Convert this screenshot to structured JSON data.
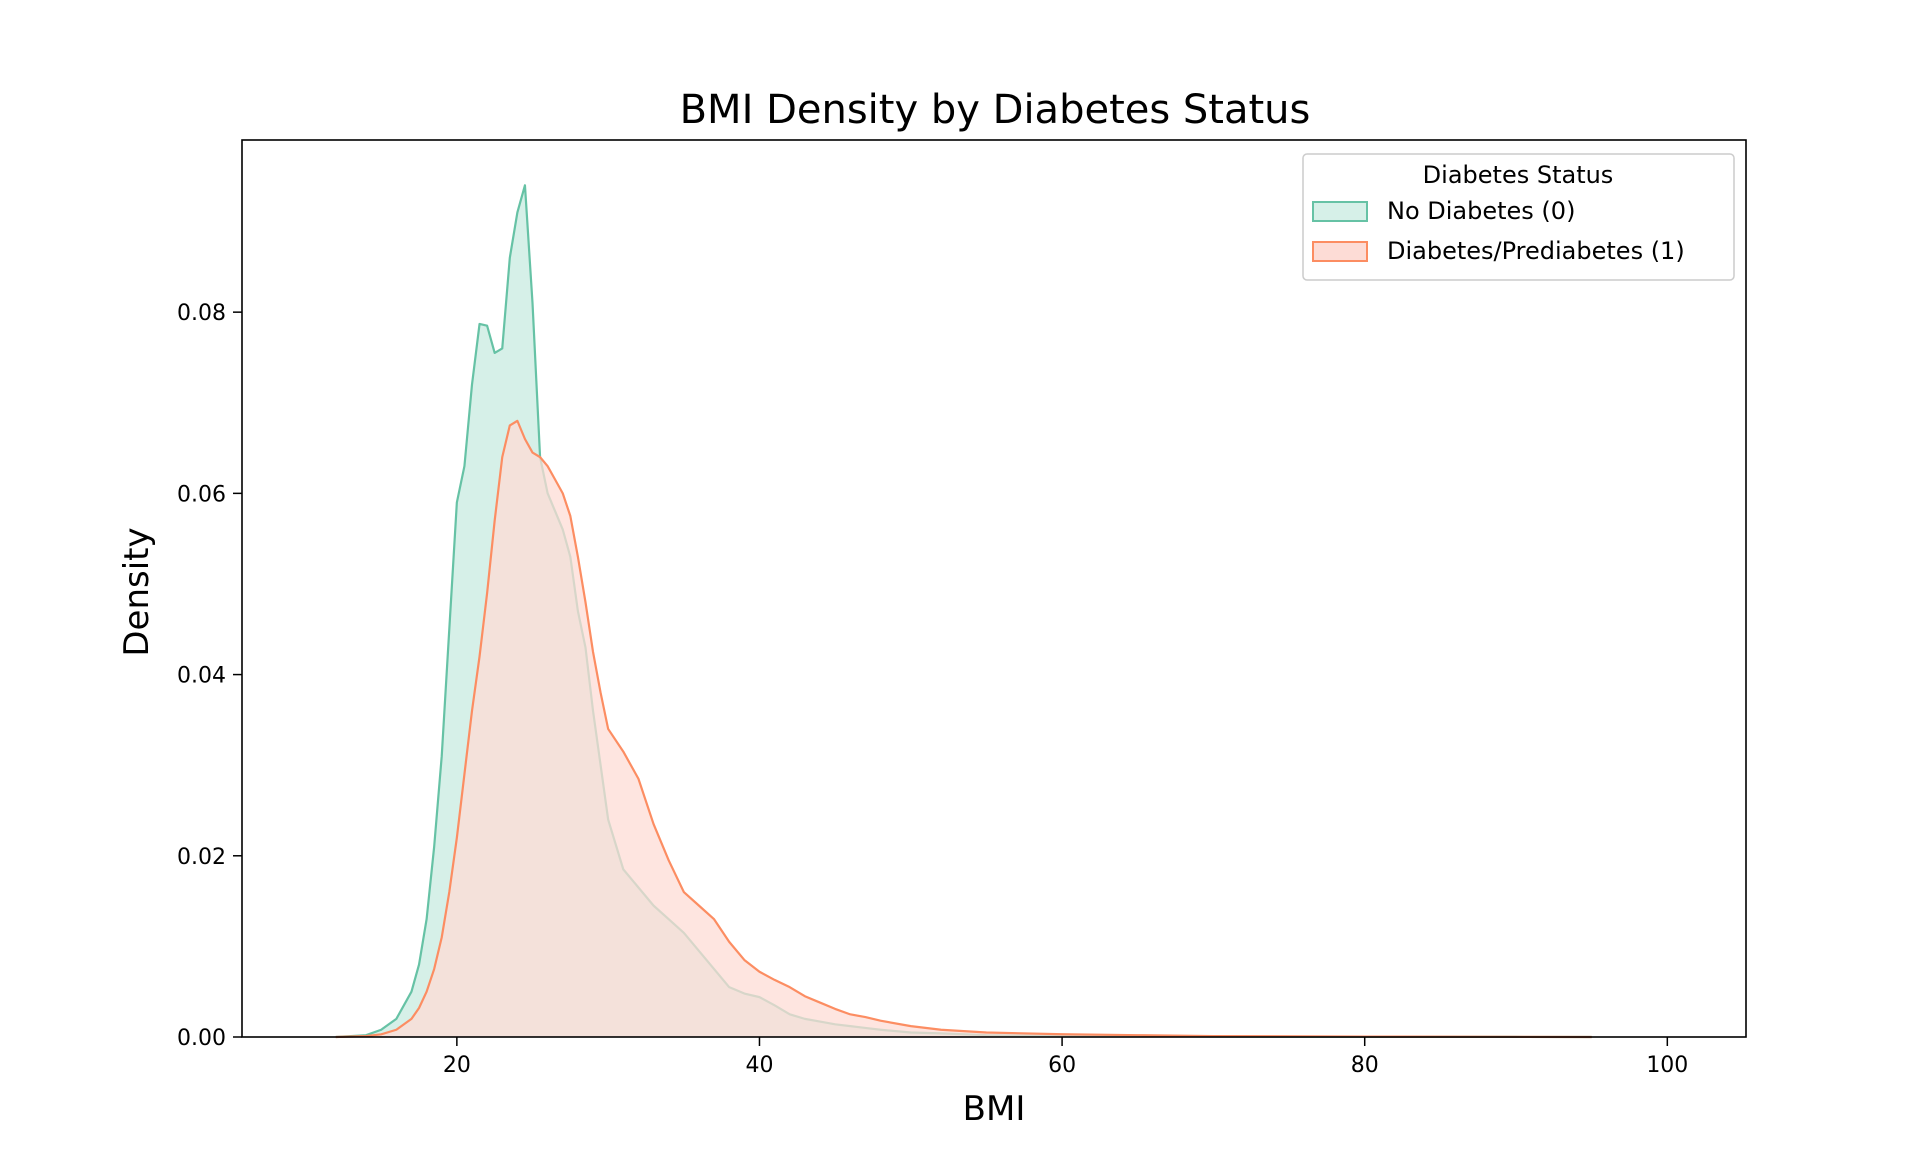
{
  "chart_data": {
    "type": "area",
    "title": "BMI Density by Diabetes Status",
    "xlabel": "BMI",
    "ylabel": "Density",
    "xlim": [
      5.8,
      105.2
    ],
    "ylim": [
      0,
      0.099
    ],
    "xticks": [
      20,
      40,
      60,
      80,
      100
    ],
    "yticks": [
      0.0,
      0.02,
      0.04,
      0.06,
      0.08
    ],
    "ytick_labels": [
      "0.00",
      "0.02",
      "0.04",
      "0.06",
      "0.08"
    ],
    "grid": false,
    "legend": {
      "title": "Diabetes Status",
      "position": "top-right"
    },
    "series": [
      {
        "name": "No Diabetes (0)",
        "line_color": "#66c2a5",
        "fill_color": "#d6f0e8",
        "x": [
          12,
          14,
          15,
          16,
          17,
          17.5,
          18,
          18.5,
          19,
          19.5,
          20,
          20.5,
          21,
          21.5,
          22,
          22.5,
          23,
          23.5,
          24,
          24.5,
          25,
          25.5,
          26,
          26.5,
          27,
          27.5,
          28,
          28.5,
          29,
          29.5,
          30,
          31,
          32,
          33,
          34,
          35,
          36,
          37,
          38,
          39,
          40,
          41,
          42,
          43,
          44,
          45,
          46,
          47,
          48,
          50,
          52,
          55,
          60,
          65,
          70,
          80,
          90,
          95
        ],
        "y": [
          0,
          0.0002,
          0.0008,
          0.002,
          0.005,
          0.008,
          0.013,
          0.021,
          0.031,
          0.045,
          0.059,
          0.063,
          0.072,
          0.0787,
          0.0785,
          0.0755,
          0.076,
          0.086,
          0.091,
          0.094,
          0.081,
          0.064,
          0.06,
          0.058,
          0.056,
          0.053,
          0.047,
          0.043,
          0.036,
          0.03,
          0.024,
          0.0185,
          0.0165,
          0.0145,
          0.013,
          0.0115,
          0.0095,
          0.0075,
          0.0055,
          0.0048,
          0.0044,
          0.0035,
          0.0025,
          0.002,
          0.0017,
          0.0014,
          0.0012,
          0.001,
          0.0008,
          0.0005,
          0.0004,
          0.0002,
          0.0001,
          0.0001,
          5e-05,
          3e-05,
          1e-05,
          0
        ]
      },
      {
        "name": "Diabetes/Prediabetes (1)",
        "line_color": "#fc8d62",
        "fill_color": "#fddcd6",
        "x": [
          12,
          14,
          15,
          16,
          17,
          17.5,
          18,
          18.5,
          19,
          19.5,
          20,
          20.5,
          21,
          21.5,
          22,
          22.5,
          23,
          23.5,
          24,
          24.5,
          25,
          25.5,
          26,
          26.5,
          27,
          27.5,
          28,
          28.5,
          29,
          29.5,
          30,
          31,
          32,
          33,
          34,
          35,
          36,
          37,
          38,
          39,
          40,
          41,
          42,
          43,
          44,
          45,
          46,
          47,
          48,
          50,
          52,
          55,
          60,
          65,
          70,
          80,
          90,
          95
        ],
        "y": [
          0,
          0.0001,
          0.0003,
          0.0008,
          0.002,
          0.0032,
          0.005,
          0.0075,
          0.011,
          0.016,
          0.022,
          0.029,
          0.036,
          0.042,
          0.049,
          0.057,
          0.064,
          0.0675,
          0.068,
          0.066,
          0.0645,
          0.064,
          0.063,
          0.0615,
          0.06,
          0.0575,
          0.053,
          0.048,
          0.0425,
          0.038,
          0.034,
          0.0315,
          0.0285,
          0.0235,
          0.0195,
          0.016,
          0.0145,
          0.013,
          0.0105,
          0.0085,
          0.0072,
          0.0063,
          0.0055,
          0.0045,
          0.0038,
          0.0031,
          0.0025,
          0.0022,
          0.0018,
          0.0012,
          0.0008,
          0.0005,
          0.0003,
          0.0002,
          0.0001,
          5e-05,
          2e-05,
          0
        ]
      }
    ]
  }
}
